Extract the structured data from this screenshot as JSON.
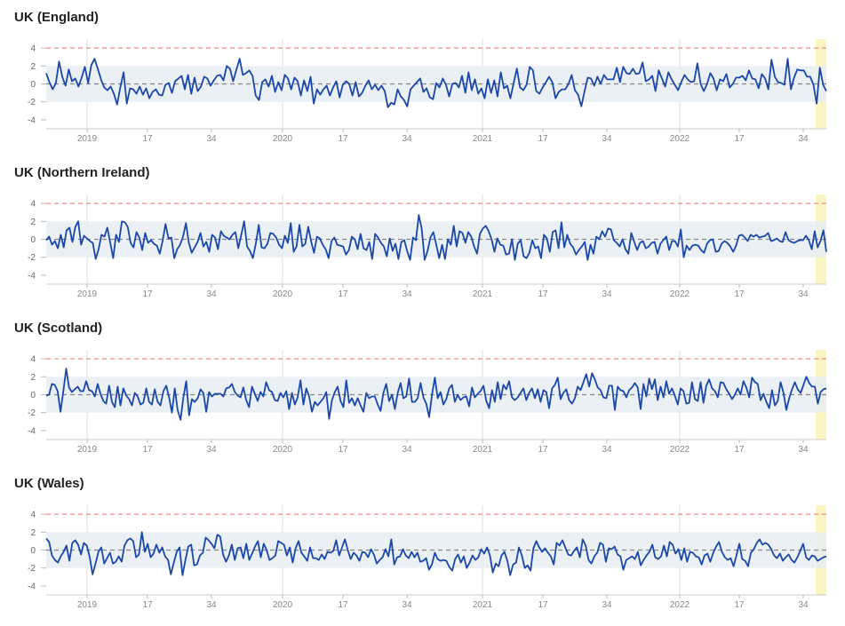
{
  "chart_data": {
    "type": "line",
    "colors": {
      "line": "#1a47a8",
      "line_highlight": "#6c7f96",
      "band": "#e8edf3",
      "threshold": "#f08a8a",
      "zero": "#888888",
      "highlight_region": "#fbf5c2",
      "grid": "#dddddd"
    },
    "x_tick_labels": [
      "2019",
      "17",
      "34",
      "2020",
      "17",
      "34",
      "2021",
      "17",
      "34",
      "2022",
      "17",
      "34"
    ],
    "y_tick_labels": [
      "4",
      "2",
      "0",
      "-2",
      "-4"
    ],
    "ylim": [
      -5,
      5
    ],
    "band": [
      -2,
      2
    ],
    "threshold": 4,
    "panels": [
      {
        "title": "UK (England)",
        "values": [
          1.2,
          0.2,
          -0.6,
          0.1,
          2.5,
          0.8,
          -0.2,
          1.6,
          0.3,
          0.6,
          -0.3,
          0.7,
          1.9,
          0.1,
          2.1,
          2.8,
          1.7,
          0.5,
          -0.4,
          -0.7,
          -0.3,
          -1.1,
          -2.3,
          -0.4,
          1.3,
          -2.2,
          -0.5,
          -0.6,
          -1.1,
          -0.3,
          -1.2,
          -0.5,
          -1.6,
          -0.9,
          -0.6,
          -1.2,
          -1.3,
          -0.1,
          0.1,
          -1.0,
          0.3,
          0.6,
          0.9,
          -0.6,
          1.0,
          -1.1,
          0.7,
          -0.8,
          -0.3,
          0.8,
          0.6,
          -0.2,
          0.4,
          0.9,
          1.0,
          0.4,
          2.0,
          1.7,
          0.3,
          1.6,
          2.8,
          1.0,
          1.2,
          1.5,
          0.9,
          -1.3,
          -1.8,
          0.2,
          0.5,
          -0.3,
          0.9,
          -0.9,
          0.2,
          -0.7,
          1.0,
          0.6,
          -0.6,
          0.7,
          0.3,
          -1.3,
          0.4,
          -0.8,
          0.8,
          -2.2,
          -0.6,
          -1.2,
          -0.6,
          -0.2,
          -1.3,
          -0.4,
          0.3,
          -1.5,
          -0.1,
          0.3,
          0.0,
          -1.3,
          0.2,
          -1.4,
          -1.0,
          -0.2,
          0.4,
          -0.6,
          -0.1,
          -0.7,
          -0.2,
          -0.8,
          -2.6,
          -2.1,
          -2.3,
          -0.6,
          -1.4,
          -1.8,
          -2.5,
          -0.6,
          -0.2,
          0.2,
          0.6,
          -0.9,
          -0.5,
          -1.5,
          -1.7,
          0.1,
          -0.4,
          0.6,
          -0.1,
          -1.4,
          0.0,
          0.1,
          -0.4,
          0.9,
          -1.0,
          1.3,
          -0.7,
          0.5,
          -1.1,
          -0.5,
          -1.6,
          0.5,
          -1.0,
          0.4,
          -1.4,
          1.3,
          -0.5,
          -0.2,
          -1.6,
          0.1,
          1.7,
          -0.4,
          -0.7,
          -0.1,
          1.9,
          1.5,
          -0.8,
          -1.1,
          -0.4,
          0.2,
          0.8,
          0.2,
          -1.6,
          -0.9,
          -0.6,
          -0.6,
          0.0,
          1.0,
          -0.7,
          -1.2,
          -2.5,
          -0.8,
          0.7,
          0.6,
          -0.2,
          0.8,
          0.0,
          1.0,
          0.5,
          0.5,
          0.5,
          1.8,
          0.2,
          1.9,
          1.2,
          1.1,
          1.7,
          1.1,
          1.2,
          2.4,
          0.3,
          0.5,
          0.9,
          -0.8,
          1.5,
          0.6,
          -0.3,
          1.3,
          0.5,
          -0.1,
          -0.7,
          0.2,
          1.0,
          0.5,
          0.2,
          0.3,
          2.3,
          0.0,
          -0.8,
          0.0,
          1.2,
          0.6,
          -0.7,
          0.5,
          0.3,
          1.1,
          -0.4,
          0.0,
          0.7,
          0.7,
          0.9,
          0.4,
          1.5,
          0.6,
          0.5,
          -0.5,
          1.1,
          0.6,
          -0.6,
          2.7,
          0.8,
          0.2,
          0.1,
          -0.1,
          2.8,
          -0.6,
          0.7,
          1.6,
          1.5,
          1.5,
          0.8,
          0.8,
          -0.1,
          -2.2,
          1.8,
          -0.1,
          -0.8
        ],
        "highlight_start": 281
      },
      {
        "title": "UK (Northern Ireland)",
        "values": [
          -0.1,
          0.3,
          -0.6,
          -0.2,
          -1.0,
          0.5,
          -0.9,
          1.0,
          1.3,
          -0.3,
          1.4,
          2.0,
          -0.6,
          0.4,
          0.1,
          -0.2,
          -0.4,
          -2.2,
          -1.1,
          0.5,
          0.3,
          1.3,
          -0.4,
          -2.1,
          0.5,
          -0.3,
          2.0,
          1.9,
          1.4,
          -0.4,
          -0.9,
          0.8,
          0.2,
          -1.2,
          0.7,
          -0.4,
          -0.1,
          -0.5,
          -0.7,
          -1.6,
          -0.2,
          1.7,
          0.1,
          0.2,
          -2.1,
          -1.1,
          -0.6,
          0.3,
          1.8,
          -0.4,
          -1.5,
          -0.9,
          -0.3,
          0.7,
          -0.8,
          -0.3,
          -1.4,
          0.5,
          0.2,
          -1.1,
          0.9,
          0.4,
          0.2,
          0.0,
          0.5,
          0.8,
          -1.0,
          0.5,
          2.0,
          -0.8,
          -1.3,
          -2.1,
          -0.5,
          1.6,
          -0.9,
          -1.0,
          -0.5,
          0.7,
          0.6,
          0.2,
          -0.6,
          -1.0,
          0.4,
          -0.4,
          1.8,
          -1.4,
          -0.8,
          1.6,
          -0.8,
          -0.5,
          1.4,
          -0.2,
          -1.5,
          0.3,
          0.1,
          -0.6,
          -1.1,
          -2.1,
          -0.2,
          0.2,
          -0.6,
          -0.7,
          -0.8,
          -1.7,
          -1.2,
          0.3,
          0.0,
          -1.1,
          0.6,
          -1.0,
          -1.2,
          -0.3,
          -2.2,
          0.6,
          0.2,
          -0.4,
          -0.8,
          -1.9,
          0.1,
          -1.3,
          -0.5,
          -2.2,
          -0.3,
          -0.1,
          -1.3,
          -2.3,
          0.2,
          -0.1,
          2.7,
          1.2,
          -2.3,
          -1.3,
          0.2,
          0.8,
          -0.6,
          -2.1,
          -0.6,
          -2.2,
          0.0,
          -0.6,
          1.5,
          -0.8,
          0.9,
          0.7,
          -0.4,
          0.8,
          0.3,
          -0.8,
          -1.6,
          0.6,
          1.2,
          1.5,
          0.9,
          0.0,
          -1.4,
          0.1,
          -0.6,
          -0.7,
          -1.7,
          -1.6,
          0.0,
          -2.3,
          -0.5,
          -0.1,
          -1.9,
          -2.1,
          -1.5,
          -0.1,
          -1.0,
          -0.8,
          -2.1,
          0.5,
          0.1,
          -1.4,
          0.8,
          1.0,
          -1.0,
          1.9,
          -0.9,
          0.5,
          -0.5,
          -0.9,
          -1.7,
          -1.2,
          -0.8,
          -0.3,
          -2.3,
          -0.6,
          -1.6,
          0.3,
          0.0,
          0.9,
          0.3,
          1.2,
          1.1,
          -0.1,
          -0.4,
          -0.8,
          0.0,
          -1.1,
          -1.6,
          0.7,
          -0.3,
          -1.2,
          -0.4,
          -0.2,
          -1.0,
          -0.8,
          -0.4,
          -0.3,
          -1.6,
          -0.5,
          -0.1,
          0.3,
          -1.2,
          -0.2,
          -0.2,
          -0.8,
          1.1,
          -2.0,
          -0.7,
          -1.2,
          -0.7,
          -0.6,
          -0.7,
          -1.2,
          -1.5,
          -0.5,
          -0.1,
          0.0,
          -1.4,
          -1.3,
          -0.5,
          -0.2,
          -0.4,
          -0.8,
          -1.4,
          -0.7,
          0.4,
          0.5,
          0.2,
          -0.2,
          0.5,
          0.3,
          0.5,
          0.2,
          0.3,
          0.4,
          0.7,
          -0.2,
          -0.1,
          0.1,
          -0.2,
          -0.3,
          0.8,
          -0.1,
          -0.3,
          -0.4,
          -0.2,
          -0.1,
          -0.1,
          0.4,
          -0.1,
          -1.1,
          0.9,
          -0.9,
          -0.2,
          1.0,
          -1.4
        ],
        "highlight_start": 281
      },
      {
        "title": "UK (Scotland)",
        "values": [
          -0.1,
          0.0,
          1.2,
          1.1,
          0.4,
          -1.9,
          0.4,
          2.9,
          0.8,
          0.3,
          0.6,
          0.9,
          0.4,
          0.4,
          1.5,
          0.5,
          0.4,
          -0.2,
          1.2,
          0.1,
          -0.7,
          -1.0,
          1.0,
          -0.8,
          -1.4,
          0.9,
          -1.2,
          0.7,
          -0.1,
          -0.5,
          -1.2,
          0.2,
          -0.2,
          -1.1,
          -0.9,
          0.7,
          -0.8,
          -1.1,
          0.6,
          -0.8,
          -1.2,
          0.4,
          1.0,
          -0.3,
          -2.0,
          0.7,
          -1.7,
          -2.8,
          -0.3,
          1.5,
          -2.3,
          -0.5,
          -0.8,
          -0.4,
          0.6,
          0.2,
          -1.9,
          0.3,
          -0.2,
          0.1,
          0.1,
          0.1,
          -0.2,
          0.7,
          0.8,
          1.2,
          0.3,
          -0.1,
          -0.3,
          0.8,
          -0.6,
          -1.4,
          0.9,
          0.1,
          -0.7,
          0.3,
          -0.2,
          1.4,
          0.5,
          0.3,
          -0.6,
          -0.7,
          0.2,
          -0.3,
          0.4,
          -1.6,
          0.2,
          -1.1,
          -0.3,
          1.6,
          -1.1,
          0.7,
          -0.2,
          -1.9,
          -0.8,
          -1.2,
          -0.8,
          -0.4,
          0.3,
          -2.7,
          -0.6,
          0.3,
          0.9,
          -0.7,
          -1.4,
          1.6,
          -0.9,
          -0.4,
          -1.2,
          -0.4,
          -1.2,
          -1.9,
          0.2,
          -0.4,
          -0.2,
          -0.2,
          -1.1,
          -1.8,
          0.2,
          1.2,
          -0.7,
          0.0,
          -1.6,
          0.2,
          1.3,
          -0.4,
          -0.2,
          1.8,
          -0.8,
          -0.8,
          -0.4,
          1.3,
          -0.3,
          -1.0,
          -2.5,
          0.0,
          1.9,
          -0.4,
          0.3,
          -1.1,
          -0.5,
          0.7,
          1.1,
          -0.8,
          0.0,
          -0.6,
          -0.3,
          -0.2,
          -1.3,
          0.8,
          -0.3,
          0.1,
          0.4,
          1.0,
          -0.7,
          -1.5,
          0.5,
          -0.8,
          1.4,
          -0.5,
          1.1,
          0.6,
          1.5,
          -0.3,
          -0.6,
          -0.3,
          0.2,
          0.7,
          -0.6,
          0.2,
          0.7,
          -0.4,
          0.6,
          -0.8,
          0.5,
          0.3,
          -1.5,
          0.7,
          1.1,
          1.9,
          -0.5,
          0.2,
          0.6,
          -0.6,
          -1.0,
          -0.4,
          0.9,
          0.5,
          1.4,
          2.3,
          0.9,
          2.4,
          1.7,
          0.8,
          0.5,
          -0.3,
          -0.4,
          1.0,
          1.0,
          -1.7,
          0.9,
          0.5,
          0.4,
          -0.3,
          0.5,
          0.8,
          1.3,
          0.8,
          -1.6,
          1.2,
          -0.2,
          1.8,
          0.6,
          1.7,
          -0.6,
          0.9,
          -0.3,
          1.5,
          0.1,
          0.7,
          -0.1,
          -1.1,
          0.7,
          0.4,
          -1.0,
          -0.9,
          1.4,
          -0.5,
          -0.7,
          1.4,
          -0.9,
          1.0,
          1.7,
          0.7,
          0.4,
          -0.3,
          1.4,
          1.3,
          0.6,
          0.1,
          -0.5,
          0.0,
          0.7,
          0.0,
          1.5,
          0.8,
          -0.3,
          1.9,
          1.4,
          1.2,
          -0.6,
          0.1,
          -0.8,
          -1.5,
          0.5,
          -1.2,
          -0.7,
          1.4,
          0.2,
          -1.7,
          -0.4,
          0.6,
          1.4,
          0.6,
          0.2,
          1.1,
          2.0,
          1.3,
          0.9,
          0.9,
          -1.0,
          0.3,
          0.6,
          0.7
        ],
        "highlight_start": 281
      },
      {
        "title": "UK (Wales)",
        "values": [
          1.3,
          0.9,
          -0.6,
          -1.1,
          -1.4,
          -0.7,
          -0.2,
          0.5,
          -1.2,
          0.8,
          1.1,
          0.6,
          -0.5,
          0.8,
          0.5,
          -0.8,
          -2.7,
          -1.5,
          -0.2,
          0.3,
          -1.5,
          -0.9,
          -0.3,
          -1.5,
          -1.3,
          -0.7,
          -1.3,
          0.5,
          1.1,
          1.3,
          1.0,
          -0.8,
          -0.5,
          2.0,
          -0.2,
          0.7,
          -0.8,
          -0.4,
          0.6,
          -0.3,
          0.3,
          -0.7,
          -1.1,
          -2.7,
          -1.4,
          -0.2,
          0.3,
          -2.8,
          -1.1,
          0.4,
          0.6,
          -1.7,
          -1.6,
          -0.6,
          -0.3,
          1.4,
          1.1,
          0.7,
          0.2,
          1.7,
          1.5,
          -0.5,
          -1.3,
          -0.6,
          0.6,
          -1.1,
          0.2,
          0.3,
          -0.9,
          0.7,
          -1.1,
          -0.4,
          0.4,
          1.0,
          -0.8,
          0.7,
          0.0,
          -1.1,
          -0.9,
          -0.6,
          1.0,
          0.8,
          0.6,
          -0.6,
          0.3,
          -1.4,
          0.2,
          1.0,
          -0.3,
          -0.7,
          -1.2,
          0.3,
          -0.9,
          -0.9,
          -1.1,
          -0.5,
          -1.0,
          -0.2,
          -0.3,
          -0.1,
          1.1,
          -0.6,
          0.3,
          1.2,
          0.0,
          -1.0,
          -0.3,
          -0.6,
          -1.2,
          -0.2,
          -0.3,
          -0.8,
          0.1,
          -0.5,
          -1.5,
          -1.1,
          -0.8,
          0.1,
          -0.7,
          1.2,
          -1.6,
          -0.8,
          -0.7,
          0.1,
          -0.6,
          -0.9,
          -0.2,
          -0.8,
          -0.3,
          -1.3,
          -1.2,
          -0.9,
          -2.2,
          -1.6,
          -0.3,
          -1.0,
          -1.2,
          -1.1,
          -1.2,
          -1.9,
          -2.3,
          -1.0,
          -0.5,
          -1.4,
          -0.7,
          -2.0,
          -1.4,
          -0.6,
          -1.1,
          -0.8,
          0.1,
          -0.4,
          0.3,
          -0.6,
          -2.5,
          -1.5,
          -1.8,
          -0.6,
          -0.2,
          -1.2,
          -2.8,
          -1.6,
          -1.4,
          0.3,
          -0.6,
          -2.0,
          -1.7,
          -2.3,
          0.2,
          1.0,
          0.3,
          -0.2,
          0.2,
          -0.3,
          -0.7,
          -1.6,
          0.8,
          0.5,
          1.1,
          0.3,
          -0.5,
          -0.6,
          -0.1,
          0.3,
          -0.8,
          1.2,
          0.5,
          -1.1,
          -1.5,
          -0.7,
          -0.3,
          0.8,
          0.6,
          -1.3,
          0.2,
          0.1,
          0.4,
          -0.5,
          -0.7,
          -2.2,
          -1.1,
          -0.9,
          -0.7,
          -1.0,
          -0.2,
          -1.7,
          -1.1,
          -0.6,
          -0.2,
          0.6,
          -0.8,
          -1.0,
          -0.7,
          0.5,
          -0.7,
          0.9,
          0.6,
          -0.4,
          0.1,
          -1.1,
          0.2,
          -1.3,
          -0.2,
          -0.3,
          -0.7,
          -0.8,
          -1.6,
          -0.6,
          -0.4,
          -1.3,
          -0.3,
          0.4,
          0.9,
          -0.2,
          -0.8,
          -1.1,
          -0.9,
          -1.8,
          -0.6,
          0.7,
          -1.0,
          -1.2,
          -1.8,
          -0.3,
          0.1,
          0.8,
          1.2,
          0.6,
          0.8,
          0.6,
          0.1,
          -0.6,
          -0.9,
          -0.4,
          -1.2,
          -0.8,
          -0.5,
          -1.1,
          -1.4,
          -0.8,
          -0.1,
          0.7,
          -0.8,
          -1.1,
          -0.6,
          -0.7,
          -1.2,
          -1.0,
          -0.8,
          -0.7
        ],
        "highlight_start": 281
      }
    ]
  }
}
